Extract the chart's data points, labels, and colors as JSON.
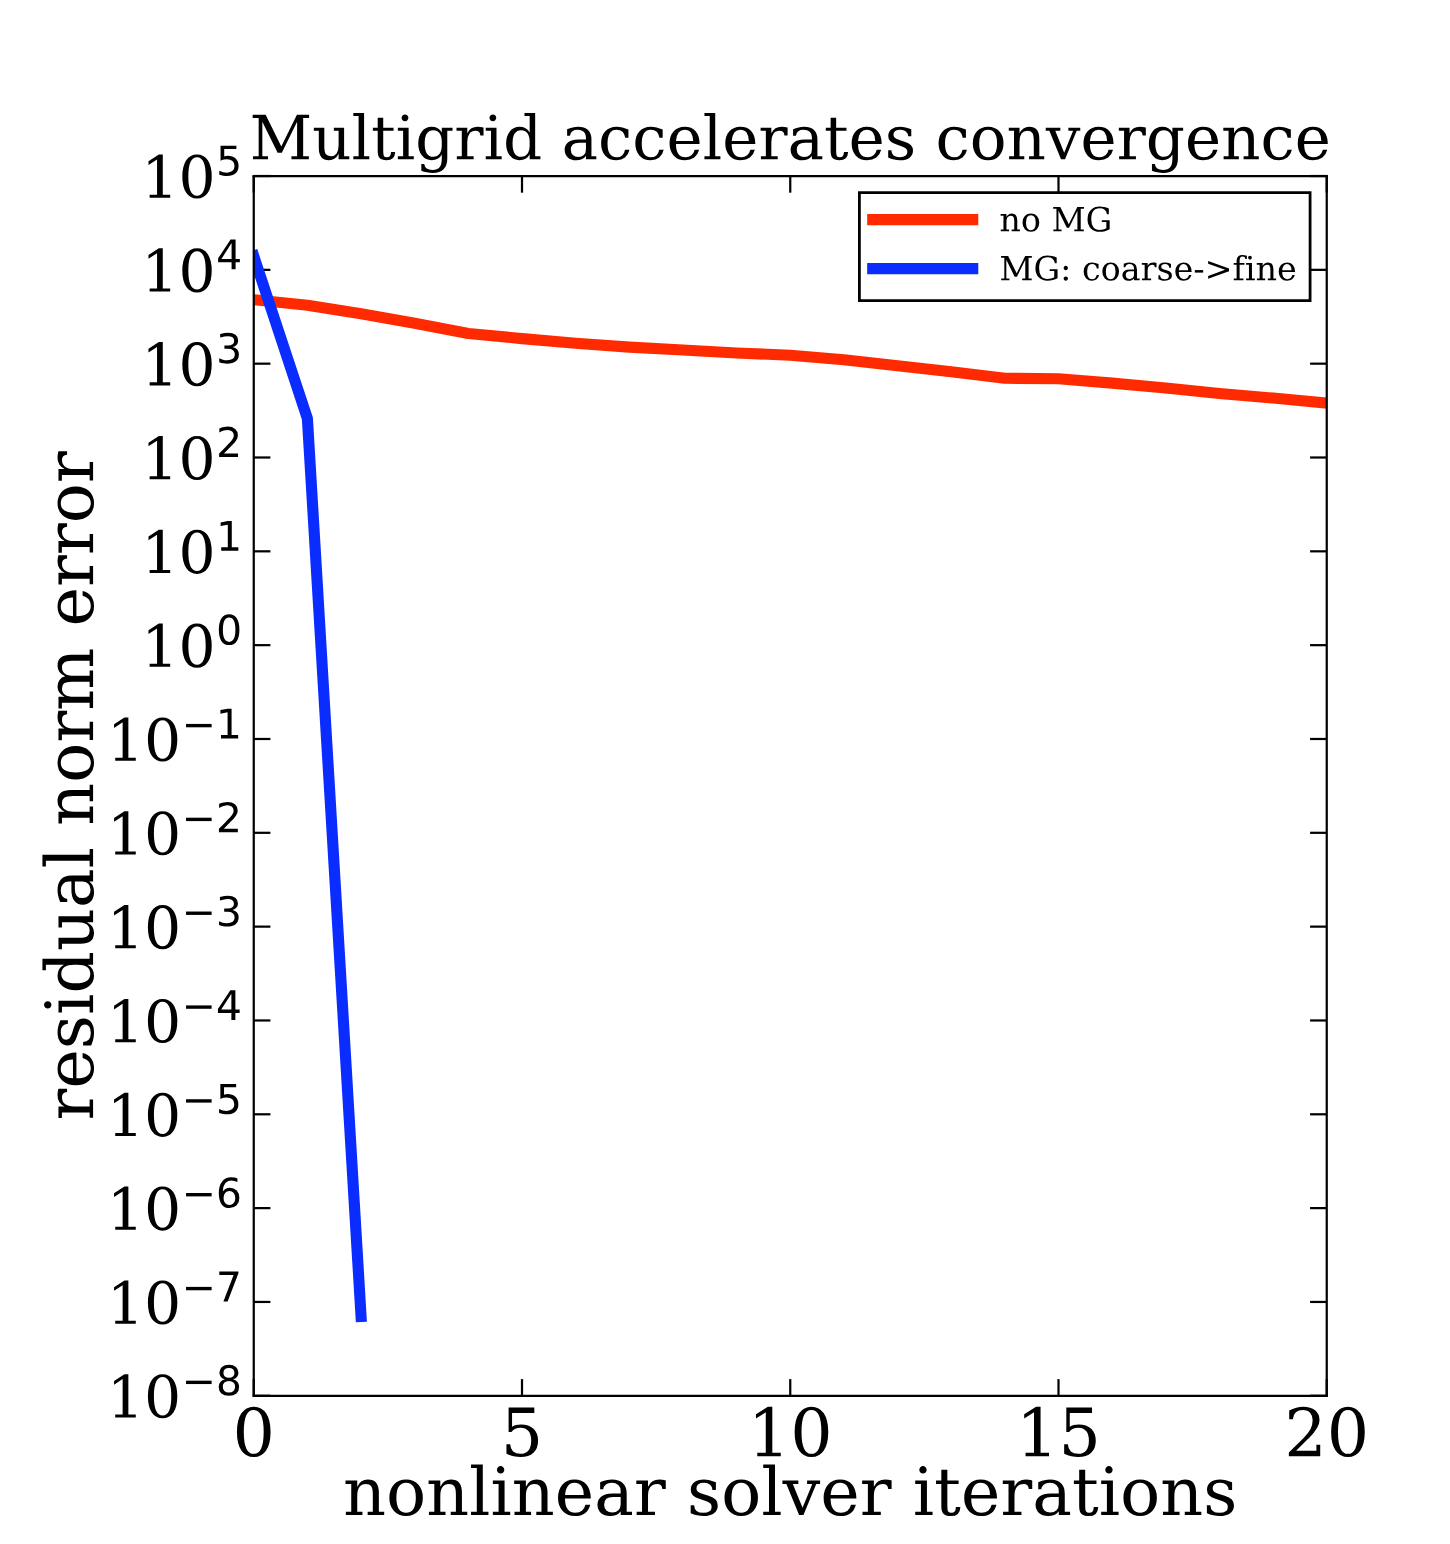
{
  "chart_data": {
    "type": "line",
    "title": "Multigrid accelerates convergence",
    "xlabel": "nonlinear solver iterations",
    "ylabel": "residual norm error",
    "log": "y",
    "xlim": [
      0,
      20
    ],
    "xticks": [
      0,
      5,
      10,
      15,
      20
    ],
    "ylim": [
      1e-08,
      100000
    ],
    "yticks": [
      {
        "value": 1e-08,
        "label": "10$^{−8}$"
      },
      {
        "value": 1e-07,
        "label": "10$^{−7}$"
      },
      {
        "value": 1e-06,
        "label": "10$^{−6}$"
      },
      {
        "value": 1e-05,
        "label": "10$^{−5}$"
      },
      {
        "value": 0.0001,
        "label": "10$^{−4}$"
      },
      {
        "value": 0.001,
        "label": "10$^{−3}$"
      },
      {
        "value": 0.01,
        "label": "10$^{−2}$"
      },
      {
        "value": 0.1,
        "label": "10$^{−1}$"
      },
      {
        "value": 1,
        "label": "10$^{0}$"
      },
      {
        "value": 10,
        "label": "10$^{1}$"
      },
      {
        "value": 100,
        "label": "10$^{2}$"
      },
      {
        "value": 1000,
        "label": "10$^{3}$"
      },
      {
        "value": 10000,
        "label": "10$^{4}$"
      },
      {
        "value": 100000,
        "label": "10$^{5}$"
      }
    ],
    "grid": false,
    "legend": "top right",
    "marker": "none",
    "line_style": "solid",
    "series": [
      {
        "name": "no MG",
        "color": "#ff2a00",
        "x": [
          0,
          1,
          2,
          3,
          4,
          5,
          6,
          7,
          8,
          9,
          10,
          11,
          12,
          13,
          14,
          15,
          16,
          17,
          18,
          19,
          20
        ],
        "values": [
          4800,
          4200,
          3400,
          2700,
          2100,
          1850,
          1650,
          1500,
          1400,
          1300,
          1230,
          1100,
          950,
          820,
          700,
          690,
          620,
          550,
          480,
          430,
          380
        ]
      },
      {
        "name": "MG: coarse->fine",
        "color": "#0a2cff",
        "x": [
          0,
          1,
          2
        ],
        "values": [
          14000,
          260,
          7e-08
        ]
      }
    ]
  }
}
